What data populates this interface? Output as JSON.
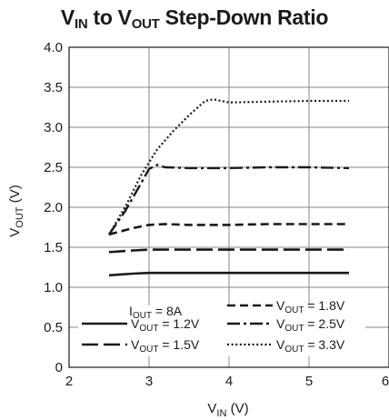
{
  "chart_data": {
    "type": "line",
    "title": {
      "main": "V",
      "sub1": "IN",
      "mid": " to V",
      "sub2": "OUT",
      "tail": " Step-Down Ratio"
    },
    "xlabel": {
      "main": "V",
      "sub": "IN",
      "tail": " (V)"
    },
    "ylabel": {
      "main": "V",
      "sub": "OUT",
      "tail": " (V)"
    },
    "xlim": [
      2,
      6
    ],
    "ylim": [
      0,
      4
    ],
    "xticks": [
      "2",
      "3",
      "4",
      "5",
      "6"
    ],
    "yticks": [
      "0",
      "0.5",
      "1.0",
      "1.5",
      "2.0",
      "2.5",
      "3.0",
      "3.5",
      "4.0"
    ],
    "grid": true,
    "legend_position": "bottom",
    "legend_note": {
      "main": "I",
      "sub": "OUT",
      "tail": " = 8A"
    },
    "series": [
      {
        "name": "1.2V",
        "label": {
          "main": "V",
          "sub": "OUT",
          "tail": " = 1.2V"
        },
        "style": "solid",
        "x": [
          2.5,
          2.8,
          3.0,
          3.2,
          3.5,
          4.0,
          4.5,
          5.0,
          5.5
        ],
        "y": [
          1.15,
          1.17,
          1.18,
          1.18,
          1.18,
          1.18,
          1.18,
          1.18,
          1.18
        ]
      },
      {
        "name": "1.5V",
        "label": {
          "main": "V",
          "sub": "OUT",
          "tail": " = 1.5V"
        },
        "style": "longdash",
        "x": [
          2.5,
          2.8,
          3.0,
          3.2,
          3.5,
          4.0,
          4.5,
          5.0,
          5.5
        ],
        "y": [
          1.44,
          1.46,
          1.47,
          1.47,
          1.47,
          1.47,
          1.47,
          1.47,
          1.47
        ]
      },
      {
        "name": "1.8V",
        "label": {
          "main": "V",
          "sub": "OUT",
          "tail": " = 1.8V"
        },
        "style": "dashed",
        "x": [
          2.5,
          2.8,
          3.0,
          3.2,
          3.5,
          4.0,
          4.5,
          5.0,
          5.5
        ],
        "y": [
          1.66,
          1.74,
          1.78,
          1.79,
          1.78,
          1.78,
          1.79,
          1.79,
          1.79
        ]
      },
      {
        "name": "2.5V",
        "label": {
          "main": "V",
          "sub": "OUT",
          "tail": " = 2.5V"
        },
        "style": "dashdot",
        "x": [
          2.5,
          2.7,
          2.9,
          3.0,
          3.1,
          3.2,
          3.5,
          4.0,
          4.5,
          5.0,
          5.5
        ],
        "y": [
          1.66,
          1.95,
          2.3,
          2.48,
          2.53,
          2.5,
          2.49,
          2.49,
          2.5,
          2.5,
          2.49
        ]
      },
      {
        "name": "3.3V",
        "label": {
          "main": "V",
          "sub": "OUT",
          "tail": " = 3.3V"
        },
        "style": "dotted",
        "x": [
          2.5,
          2.7,
          2.9,
          3.1,
          3.3,
          3.5,
          3.7,
          3.8,
          4.0,
          4.5,
          5.0,
          5.5
        ],
        "y": [
          1.66,
          2.0,
          2.4,
          2.72,
          2.95,
          3.15,
          3.33,
          3.35,
          3.31,
          3.32,
          3.33,
          3.33
        ]
      }
    ]
  }
}
